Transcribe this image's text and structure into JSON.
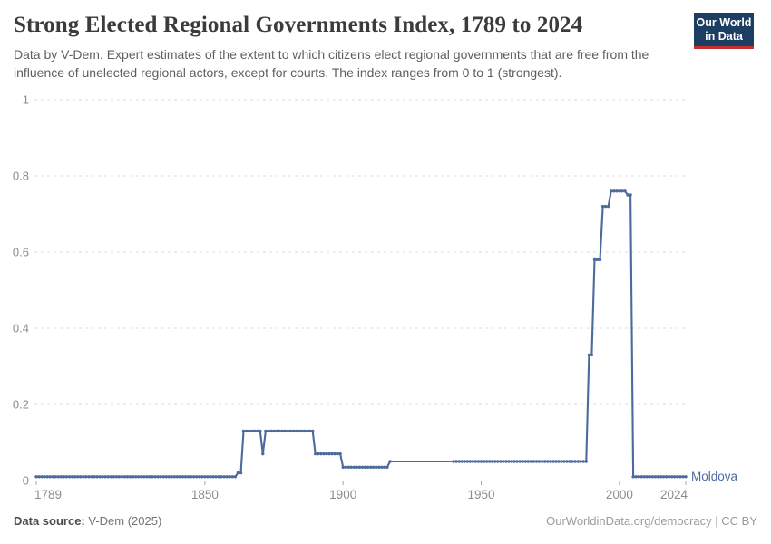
{
  "header": {
    "title": "Strong Elected Regional Governments Index, 1789 to 2024",
    "subtitle": "Data by V-Dem. Expert estimates of the extent to which citizens elect regional governments that are free from the influence of unelected regional actors, except for courts. The index ranges from 0 to 1 (strongest)."
  },
  "logo": {
    "line1": "Our World",
    "line2": "in Data",
    "bg_color": "#1d3d63",
    "accent_color": "#c62f2f"
  },
  "footer": {
    "source_label": "Data source:",
    "source_value": " V-Dem (2025)",
    "right_text": "OurWorldinData.org/democracy | CC BY"
  },
  "chart_data": {
    "type": "line",
    "title": "Strong Elected Regional Governments Index, 1789 to 2024",
    "entity": "Moldova",
    "xlabel": "",
    "ylabel": "",
    "xlim": [
      1789,
      2024
    ],
    "ylim": [
      0,
      1
    ],
    "x_ticks": [
      1789,
      1850,
      1900,
      1950,
      2000,
      2024
    ],
    "y_ticks": [
      0,
      0.2,
      0.4,
      0.6,
      0.8,
      1
    ],
    "grid": "horizontal-dashed",
    "legend_position": "line-end-label",
    "line_color": "#4C6A9C",
    "axis_label_color": "#8c8c8c",
    "grid_color": "#dddddd",
    "axis_line_color": "#a8a8a8",
    "series": [
      {
        "name": "Moldova",
        "color": "#4C6A9C",
        "step_points": [
          [
            1789,
            0.01
          ],
          [
            1862,
            0.02
          ],
          [
            1864,
            0.13
          ],
          [
            1871,
            0.07
          ],
          [
            1872,
            0.13
          ],
          [
            1890,
            0.07
          ],
          [
            1900,
            0.035
          ],
          [
            1917,
            0.05
          ],
          [
            1989,
            0.33
          ],
          [
            1991,
            0.58
          ],
          [
            1994,
            0.72
          ],
          [
            1997,
            0.76
          ],
          [
            2003,
            0.75
          ],
          [
            2005,
            0.01
          ]
        ],
        "last_year": 2024,
        "unmarked_year_range": [
          1918,
          1939
        ]
      }
    ]
  }
}
